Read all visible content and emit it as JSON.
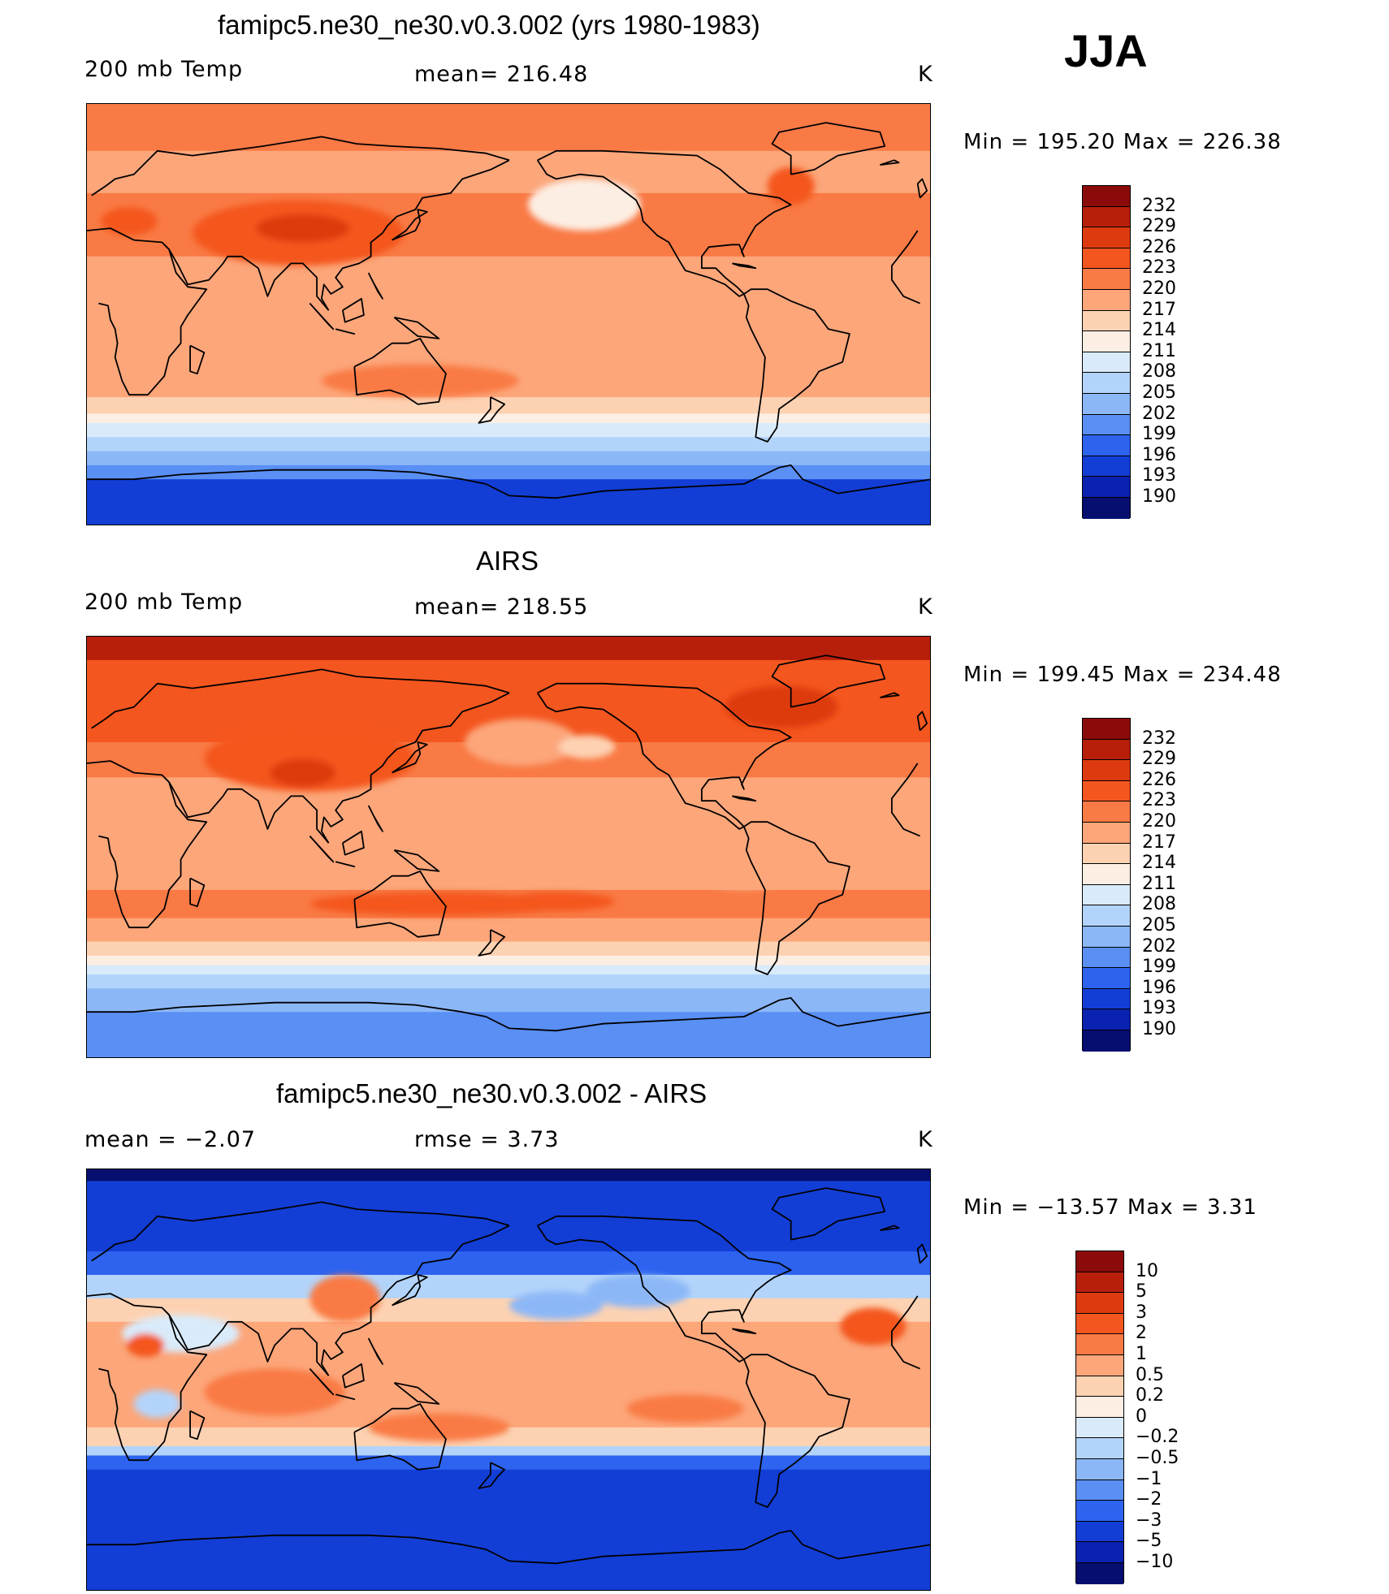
{
  "season": "JJA",
  "coastline_color": "#000000",
  "panels": [
    {
      "title": "famipc5.ne30_ne30.v0.3.002 (yrs 1980-1983)",
      "left_label": "200 mb Temp",
      "center_label": "mean= 216.48",
      "units": "K",
      "min_max": "Min  =  195.20  Max  =  226.38",
      "colorbar": {
        "labels": [
          "232",
          "229",
          "226",
          "223",
          "220",
          "217",
          "214",
          "211",
          "208",
          "205",
          "202",
          "199",
          "196",
          "193",
          "190"
        ],
        "colors": [
          "#8b0a0a",
          "#b81f0a",
          "#de3a10",
          "#f4561f",
          "#f97a45",
          "#fca67a",
          "#fdd2b2",
          "#fdeee3",
          "#d9ebfb",
          "#b3d4fa",
          "#8cb7f7",
          "#5a8ff4",
          "#2d63ef",
          "#123ed6",
          "#0a22b0",
          "#060e70"
        ]
      },
      "map_style": "model"
    },
    {
      "title": "AIRS",
      "left_label": "200 mb Temp",
      "center_label": "mean= 218.55",
      "units": "K",
      "min_max": "Min  =  199.45  Max  =  234.48",
      "colorbar": {
        "labels": [
          "232",
          "229",
          "226",
          "223",
          "220",
          "217",
          "214",
          "211",
          "208",
          "205",
          "202",
          "199",
          "196",
          "193",
          "190"
        ],
        "colors": [
          "#8b0a0a",
          "#b81f0a",
          "#de3a10",
          "#f4561f",
          "#f97a45",
          "#fca67a",
          "#fdd2b2",
          "#fdeee3",
          "#d9ebfb",
          "#b3d4fa",
          "#8cb7f7",
          "#5a8ff4",
          "#2d63ef",
          "#123ed6",
          "#0a22b0",
          "#060e70"
        ]
      },
      "map_style": "obs"
    },
    {
      "title": "famipc5.ne30_ne30.v0.3.002 - AIRS",
      "left_label": "mean =    −2.07",
      "center_label": "rmse =     3.73",
      "units": "K",
      "min_max": "Min  =  −13.57  Max  =       3.31",
      "colorbar": {
        "labels": [
          "10",
          "5",
          "3",
          "2",
          "1",
          "0.5",
          "0.2",
          "0",
          "−0.2",
          "−0.5",
          "−1",
          "−2",
          "−3",
          "−5",
          "−10"
        ],
        "colors": [
          "#8b0a0a",
          "#b81f0a",
          "#de3a10",
          "#f4561f",
          "#f97a45",
          "#fca67a",
          "#fdd2b2",
          "#fdeee3",
          "#d9ebfb",
          "#b3d4fa",
          "#8cb7f7",
          "#5a8ff4",
          "#2d63ef",
          "#123ed6",
          "#0a22b0",
          "#060e70"
        ]
      },
      "map_style": "diff"
    }
  ]
}
